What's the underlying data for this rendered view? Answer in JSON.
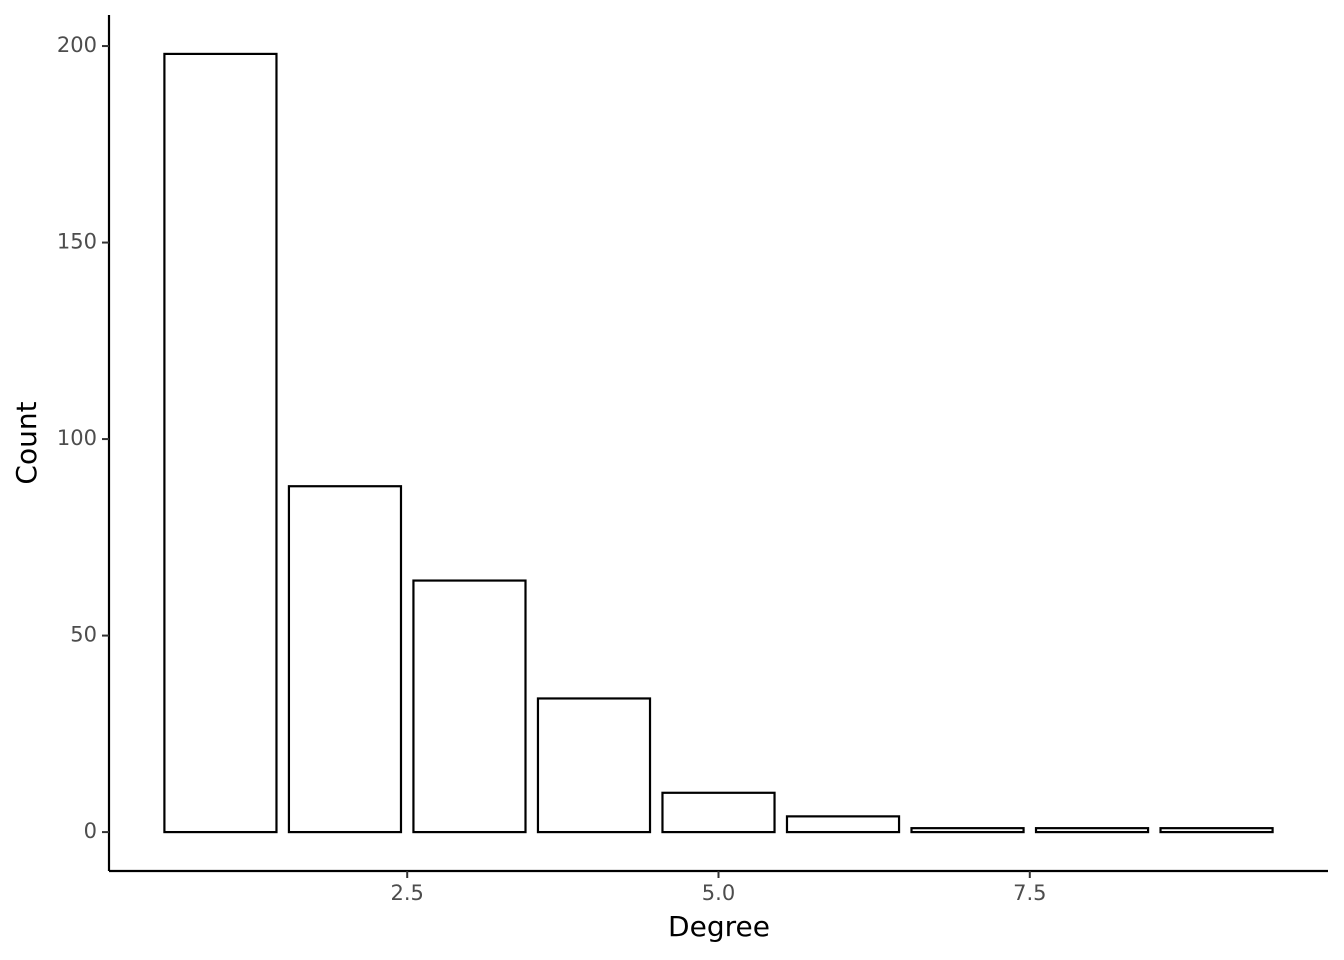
{
  "chart_data": {
    "type": "bar",
    "x_label": "Degree",
    "y_label": "Count",
    "x": [
      1,
      2,
      3,
      4,
      5,
      6,
      7,
      8,
      9
    ],
    "values": [
      198,
      88,
      64,
      34,
      10,
      4,
      1,
      1,
      1
    ],
    "color": "#ffffff",
    "edgecolor": "#000000",
    "xlim": [
      0.105,
      9.895
    ],
    "xticks": [
      2.5,
      {
        "value": 5,
        "label": "5.0"
      },
      7.5
    ],
    "ylim": [
      -9.9,
      207.9
    ],
    "yticks": [
      0,
      50,
      100,
      150,
      200
    ],
    "grid": false
  }
}
